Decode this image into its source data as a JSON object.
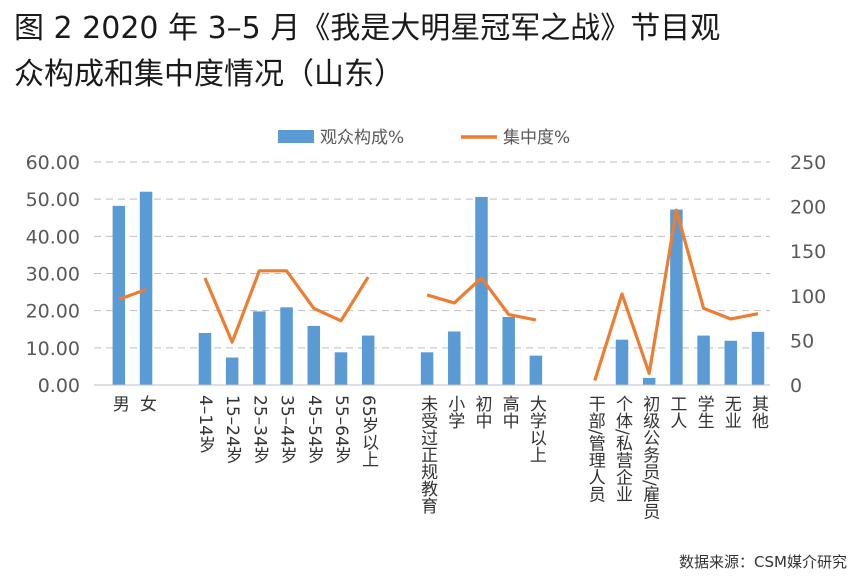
{
  "title_line1": "图 2 2020 年 3–5 月《我是大明星冠军之战》节目观",
  "title_line2": "众构成和集中度情况（山东）",
  "source": "数据来源：CSM媒介研究",
  "colors": {
    "bar": "#5b9bd5",
    "line": "#ed7d31",
    "grid": "#bfbfbf",
    "axis_text": "#595959"
  },
  "chart_data": {
    "type": "bar",
    "title": "",
    "xlabel": "",
    "ylabel": "",
    "legend_position": "top",
    "grid": true,
    "ylim": [
      0,
      60
    ],
    "y2lim": [
      0,
      250
    ],
    "y_ticks": [
      "0.00",
      "10.00",
      "20.00",
      "30.00",
      "40.00",
      "50.00",
      "60.00"
    ],
    "y2_ticks": [
      "0",
      "50",
      "100",
      "150",
      "200",
      "250"
    ],
    "groups": [
      {
        "categories": [
          "男",
          "女"
        ]
      },
      {
        "categories": [
          "4–14岁",
          "15–24岁",
          "25–34岁",
          "35–44岁",
          "45–54岁",
          "55–64岁",
          "65岁以上"
        ]
      },
      {
        "categories": [
          "未受过正规教育",
          "小学",
          "初中",
          "高中",
          "大学以上"
        ]
      },
      {
        "categories": [
          "干部/管理人员",
          "个体/私营企业",
          "初级公务员/雇员",
          "工人",
          "学生",
          "无业",
          "其他"
        ]
      }
    ],
    "series": [
      {
        "name": "观众构成%",
        "type": "bar",
        "axis": "left",
        "values": [
          [
            48.2,
            52.0
          ],
          [
            14.0,
            7.4,
            19.8,
            20.9,
            15.9,
            8.8,
            13.3
          ],
          [
            8.8,
            14.4,
            50.6,
            18.3,
            7.9
          ],
          [
            0.0,
            12.2,
            1.9,
            47.2,
            13.3,
            11.9,
            14.3
          ]
        ]
      },
      {
        "name": "集中度%",
        "type": "line",
        "axis": "right",
        "values": [
          [
            96,
            107
          ],
          [
            120,
            48,
            128,
            128,
            86,
            72,
            121
          ],
          [
            101,
            92,
            120,
            79,
            73
          ],
          [
            5,
            102,
            13,
            196,
            86,
            74,
            80
          ]
        ]
      }
    ]
  }
}
